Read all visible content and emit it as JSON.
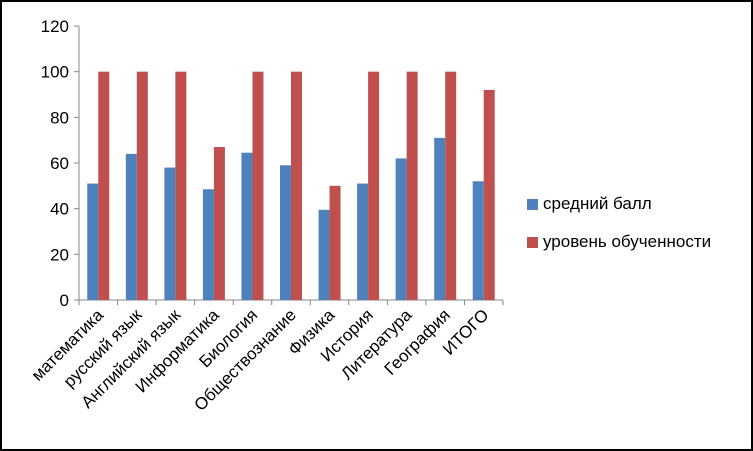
{
  "chart_data": {
    "type": "bar",
    "categories": [
      "математика",
      "русский язык",
      "Английский язык",
      "Информатика",
      "Биология",
      "Обществознание",
      "Физика",
      "История",
      "Литература",
      "География",
      "ИТОГО"
    ],
    "series": [
      {
        "name": "средний балл",
        "color": "#4F81BD",
        "values": [
          51,
          64,
          58,
          48.5,
          64.5,
          59,
          39.5,
          51,
          62,
          71,
          52
        ]
      },
      {
        "name": "уровень обученности",
        "color": "#C0504D",
        "values": [
          100,
          100,
          100,
          67,
          100,
          100,
          50,
          100,
          100,
          100,
          92
        ]
      }
    ],
    "yticks": [
      0,
      20,
      40,
      60,
      80,
      100,
      120
    ],
    "ylim": [
      0,
      120
    ],
    "grid": false,
    "legend_position": "right",
    "title": "",
    "xlabel": "",
    "ylabel": ""
  }
}
